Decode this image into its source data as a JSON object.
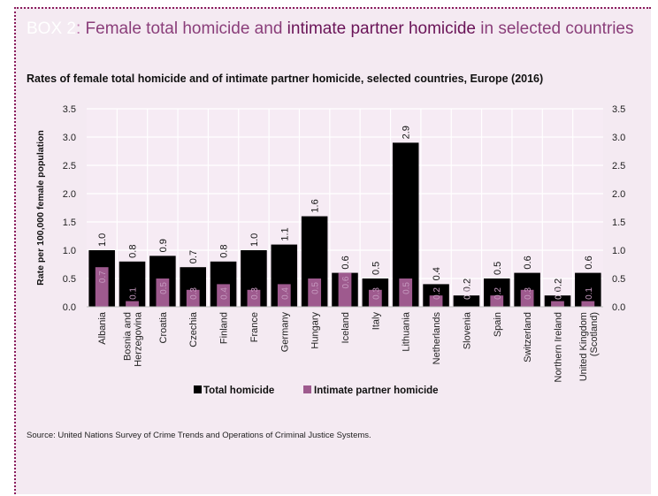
{
  "box": {
    "label": "BOX 2",
    "colon": ":",
    "title_part1": " Female total homicide and ",
    "title_emph": "intimate partner homicide",
    "title_part2": " in selected countries"
  },
  "source": "Source: United Nations Survey of Crime Trends and Operations of Criminal Justice Systems.",
  "colors": {
    "total": "#000000",
    "ipv": "#9e5a8e",
    "plot_bg": "#f6ebf4",
    "grid": "#ffffff",
    "frame_bg": "#f4eaf2",
    "accent": "#8a3e7a"
  },
  "chart_data": {
    "type": "bar",
    "title": "Rates of female total homicide and of intimate partner homicide, selected countries, Europe (2016)",
    "ylabel": "Rate per 100,000 female population",
    "xlabel": "",
    "ylim": [
      0,
      3.5
    ],
    "yticks": [
      "0.0",
      "0.5",
      "1.0",
      "1.5",
      "2.0",
      "2.5",
      "3.0",
      "3.5"
    ],
    "grid": true,
    "legend_position": "bottom",
    "categories": [
      "Albania",
      "Bosnia and Herzegovina",
      "Croatia",
      "Czechia",
      "Finland",
      "France",
      "Germany",
      "Hungary",
      "Iceland",
      "Italy",
      "Lithuania",
      "Netherlands",
      "Slovenia",
      "Spain",
      "Switzerland",
      "Northern Ireland",
      "United Kingdom (Scotland)"
    ],
    "category_lines": [
      [
        "Albania"
      ],
      [
        "Bosnia and",
        "Herzegovina"
      ],
      [
        "Croatia"
      ],
      [
        "Czechia"
      ],
      [
        "Finland"
      ],
      [
        "France"
      ],
      [
        "Germany"
      ],
      [
        "Hungary"
      ],
      [
        "Iceland"
      ],
      [
        "Italy"
      ],
      [
        "Lithuania"
      ],
      [
        "Netherlands"
      ],
      [
        "Slovenia"
      ],
      [
        "Spain"
      ],
      [
        "Switzerland"
      ],
      [
        "Northern Ireland"
      ],
      [
        "United Kingdom",
        "(Scotland)"
      ]
    ],
    "series": [
      {
        "name": "Total homicide",
        "values": [
          1.0,
          0.8,
          0.9,
          0.7,
          0.8,
          1.0,
          1.1,
          1.6,
          0.6,
          0.5,
          2.9,
          0.4,
          0.2,
          0.5,
          0.6,
          0.2,
          0.6
        ],
        "labels": [
          "1.0",
          "0.8",
          "0.9",
          "0.7",
          "0.8",
          "1.0",
          "1.1",
          "1.6",
          "0.6",
          "0.5",
          "2.9",
          "0.4",
          "0.2",
          "0.5",
          "0.6",
          "0.2",
          "0.6"
        ]
      },
      {
        "name": "Intimate partner homicide",
        "values": [
          0.7,
          0.1,
          0.5,
          0.3,
          0.4,
          0.3,
          0.4,
          0.5,
          0.6,
          0.3,
          0.5,
          0.2,
          0.0,
          0.2,
          0.3,
          0.1,
          0.1
        ],
        "labels": [
          "0.7",
          "0.1",
          "0.5",
          "0.3",
          "0.4",
          "0.3",
          "0.4",
          "0.5",
          "0.6",
          "0.3",
          "0.5",
          "0.2",
          "0.0",
          "0.2",
          "0.3",
          "0.1",
          "0.1"
        ]
      }
    ]
  }
}
